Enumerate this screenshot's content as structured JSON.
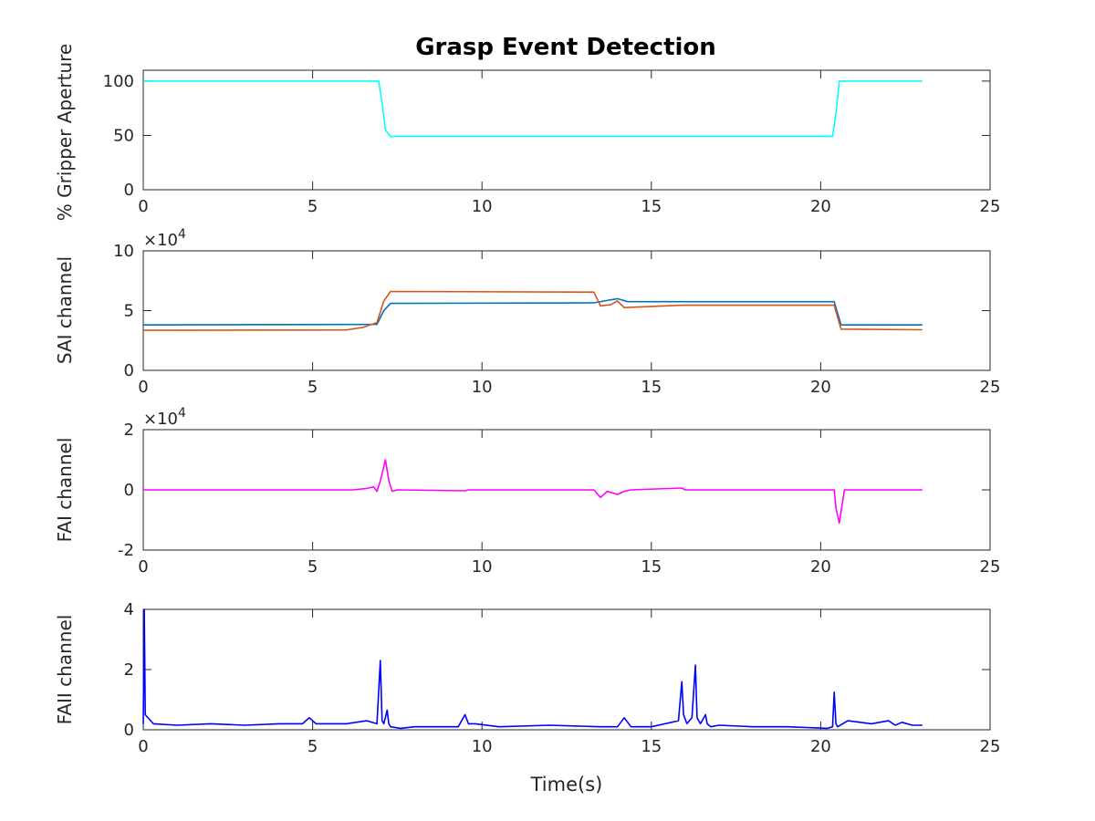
{
  "figure": {
    "title": "Grasp Event Detection"
  },
  "chart_data": [
    {
      "type": "line",
      "ylabel": "% Gripper Aperture",
      "xlabel": "",
      "xlim": [
        0,
        25
      ],
      "ylim": [
        0,
        110
      ],
      "xticks": [
        0,
        5,
        10,
        15,
        20,
        25
      ],
      "yticks": [
        0,
        50,
        100
      ],
      "ytick_labels": [
        "0",
        "50",
        "100"
      ],
      "exponent_label": "",
      "series": [
        {
          "color": "#00ffff",
          "x": [
            0,
            6.95,
            7.05,
            7.15,
            7.3,
            20.35,
            20.45,
            20.55,
            23
          ],
          "y": [
            100,
            100,
            80,
            55,
            49,
            49,
            70,
            100,
            100
          ]
        }
      ]
    },
    {
      "type": "line",
      "ylabel": "SAI channel",
      "xlabel": "",
      "xlim": [
        0,
        25
      ],
      "ylim": [
        0,
        100000
      ],
      "xticks": [
        0,
        5,
        10,
        15,
        20,
        25
      ],
      "yticks": [
        0,
        50000,
        100000
      ],
      "ytick_labels": [
        "0",
        "5",
        "10"
      ],
      "exponent_label": "×10",
      "exponent_power": "4",
      "series": [
        {
          "color": "#0072bd",
          "x": [
            0,
            6.9,
            7.1,
            7.3,
            13.3,
            13.6,
            14.0,
            14.3,
            20.4,
            20.6,
            23
          ],
          "y": [
            38000,
            38500,
            50000,
            56000,
            56500,
            58000,
            60000,
            57500,
            57500,
            38000,
            38000
          ]
        },
        {
          "color": "#d95319",
          "x": [
            0,
            6.0,
            6.5,
            6.9,
            7.1,
            7.3,
            13.3,
            13.5,
            13.8,
            14.0,
            14.2,
            15.9,
            20.4,
            20.6,
            23
          ],
          "y": [
            33500,
            33800,
            36000,
            40000,
            58000,
            66000,
            65500,
            54000,
            55000,
            58000,
            52500,
            54500,
            54500,
            34500,
            34000
          ]
        }
      ]
    },
    {
      "type": "line",
      "ylabel": "FAI channel",
      "xlabel": "",
      "xlim": [
        0,
        25
      ],
      "ylim": [
        -20000,
        20000
      ],
      "xticks": [
        0,
        5,
        10,
        15,
        20,
        25
      ],
      "yticks": [
        -20000,
        0,
        20000
      ],
      "ytick_labels": [
        "-2",
        "0",
        "2"
      ],
      "exponent_label": "×10",
      "exponent_power": "4",
      "series": [
        {
          "color": "#ff00ff",
          "x": [
            0,
            6.2,
            6.6,
            6.8,
            6.9,
            7.0,
            7.15,
            7.25,
            7.35,
            7.5,
            9.5,
            9.6,
            13.3,
            13.5,
            13.7,
            14.0,
            14.2,
            14.4,
            15.9,
            16.0,
            20.4,
            20.45,
            20.55,
            20.7,
            23
          ],
          "y": [
            0,
            0,
            500,
            1000,
            -500,
            3000,
            10000,
            3000,
            -500,
            0,
            -300,
            0,
            0,
            -2500,
            -500,
            -1500,
            -500,
            0,
            600,
            0,
            0,
            -6000,
            -11000,
            0,
            0
          ]
        }
      ]
    },
    {
      "type": "line",
      "ylabel": "FAII channel",
      "xlabel": "Time(s)",
      "xlim": [
        0,
        25
      ],
      "ylim": [
        0,
        4
      ],
      "xticks": [
        0,
        5,
        10,
        15,
        20,
        25
      ],
      "yticks": [
        0,
        2,
        4
      ],
      "ytick_labels": [
        "0",
        "2",
        "4"
      ],
      "exponent_label": "",
      "series": [
        {
          "color": "#0000ff",
          "x": [
            0,
            0.03,
            0.06,
            0.3,
            1.0,
            2.0,
            3.0,
            4.0,
            4.7,
            4.9,
            5.1,
            6.0,
            6.6,
            6.9,
            7.0,
            7.05,
            7.1,
            7.2,
            7.25,
            7.3,
            7.6,
            8.0,
            9.3,
            9.5,
            9.6,
            9.8,
            10.5,
            12.0,
            13.5,
            14.0,
            14.2,
            14.4,
            15.0,
            15.8,
            15.9,
            15.95,
            16.05,
            16.2,
            16.3,
            16.35,
            16.45,
            16.6,
            16.65,
            16.75,
            17.0,
            18.0,
            19.0,
            20.2,
            20.35,
            20.4,
            20.45,
            20.5,
            20.8,
            21.5,
            22.0,
            22.2,
            22.4,
            22.7,
            23
          ],
          "y": [
            0.2,
            4.0,
            0.5,
            0.2,
            0.15,
            0.2,
            0.15,
            0.2,
            0.2,
            0.4,
            0.2,
            0.2,
            0.3,
            0.2,
            2.3,
            0.3,
            0.2,
            0.65,
            0.2,
            0.1,
            0.05,
            0.1,
            0.1,
            0.5,
            0.2,
            0.2,
            0.1,
            0.15,
            0.1,
            0.1,
            0.4,
            0.1,
            0.1,
            0.3,
            1.6,
            0.5,
            0.2,
            0.4,
            2.15,
            0.4,
            0.2,
            0.5,
            0.2,
            0.1,
            0.15,
            0.1,
            0.1,
            0.05,
            0.1,
            1.25,
            0.2,
            0.1,
            0.3,
            0.2,
            0.3,
            0.15,
            0.25,
            0.15,
            0.15
          ]
        }
      ]
    }
  ]
}
